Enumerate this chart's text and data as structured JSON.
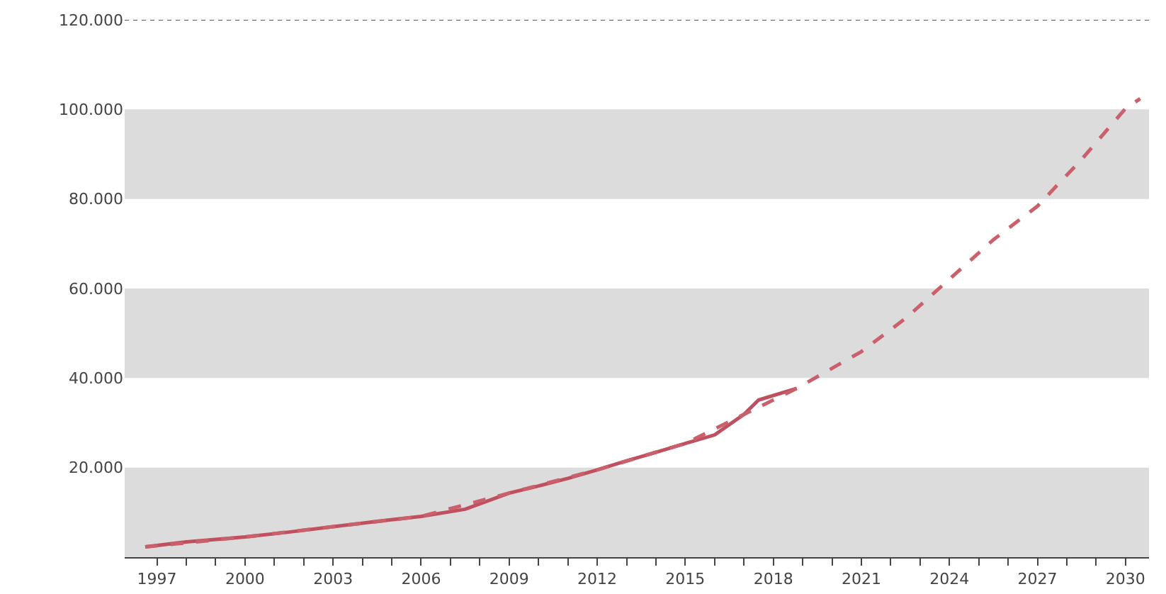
{
  "chart_data": {
    "type": "line",
    "series": [
      {
        "color": "#c0505f",
        "line_style": "solid",
        "x": [
          1996.6,
          1998,
          2000,
          2001.5,
          2003,
          2004.5,
          2006,
          2007.5,
          2009,
          2010,
          2011,
          2012,
          2013,
          2014,
          2015,
          2016,
          2017,
          2017.5,
          2018.8
        ],
        "values": [
          2300,
          3400,
          4500,
          5600,
          6800,
          8000,
          9100,
          10700,
          14300,
          15900,
          17600,
          19500,
          21500,
          23400,
          25400,
          27300,
          31900,
          35100,
          37700
        ]
      },
      {
        "color": "#c9606c",
        "line_style": "dashed",
        "x": [
          1996.6,
          2000,
          2003,
          2006,
          2009,
          2012,
          2015,
          2018.8,
          2021,
          2022.5,
          2024,
          2025.5,
          2027,
          2028.5,
          2030,
          2030.5
        ],
        "values": [
          2300,
          4500,
          6800,
          9100,
          14300,
          19500,
          25400,
          37700,
          45900,
          53300,
          62100,
          70900,
          78400,
          88800,
          100200,
          102400
        ]
      }
    ],
    "xlim": [
      1995.9,
      2030.8
    ],
    "xticks": [
      {
        "value": 1997,
        "label": "1997"
      },
      {
        "value": 1998,
        "label": null
      },
      {
        "value": 1999,
        "label": null
      },
      {
        "value": 2000,
        "label": "2000"
      },
      {
        "value": 2001,
        "label": null
      },
      {
        "value": 2002,
        "label": null
      },
      {
        "value": 2003,
        "label": "2003"
      },
      {
        "value": 2004,
        "label": null
      },
      {
        "value": 2005,
        "label": null
      },
      {
        "value": 2006,
        "label": "2006"
      },
      {
        "value": 2007,
        "label": null
      },
      {
        "value": 2008,
        "label": null
      },
      {
        "value": 2009,
        "label": "2009"
      },
      {
        "value": 2010,
        "label": null
      },
      {
        "value": 2011,
        "label": null
      },
      {
        "value": 2012,
        "label": "2012"
      },
      {
        "value": 2013,
        "label": null
      },
      {
        "value": 2014,
        "label": null
      },
      {
        "value": 2015,
        "label": "2015"
      },
      {
        "value": 2016,
        "label": null
      },
      {
        "value": 2017,
        "label": null
      },
      {
        "value": 2018,
        "label": "2018"
      },
      {
        "value": 2019,
        "label": null
      },
      {
        "value": 2020,
        "label": null
      },
      {
        "value": 2021,
        "label": "2021"
      },
      {
        "value": 2022,
        "label": null
      },
      {
        "value": 2023,
        "label": null
      },
      {
        "value": 2024,
        "label": "2024"
      },
      {
        "value": 2025,
        "label": null
      },
      {
        "value": 2026,
        "label": null
      },
      {
        "value": 2027,
        "label": "2027"
      },
      {
        "value": 2028,
        "label": null
      },
      {
        "value": 2029,
        "label": null
      },
      {
        "value": 2030,
        "label": "2030"
      }
    ],
    "ylim": [
      0,
      120000
    ],
    "yticks": [
      {
        "value": 20000,
        "label": "20.000"
      },
      {
        "value": 40000,
        "label": "40.000"
      },
      {
        "value": 60000,
        "label": "60.000"
      },
      {
        "value": 80000,
        "label": "80.000"
      },
      {
        "value": 100000,
        "label": "100.000"
      },
      {
        "value": 120000,
        "label": "120.000"
      }
    ],
    "bands": [
      {
        "axis": "y",
        "from": 0,
        "to": 20000,
        "color": "#dcdcdc"
      },
      {
        "axis": "y",
        "from": 40000,
        "to": 60000,
        "color": "#dcdcdc"
      },
      {
        "axis": "y",
        "from": 80000,
        "to": 100000,
        "color": "#dcdcdc"
      }
    ],
    "ref_lines": [
      {
        "axis": "y",
        "value": 120000,
        "color": "#555555",
        "line_style": "dotted"
      }
    ],
    "grid": false
  }
}
